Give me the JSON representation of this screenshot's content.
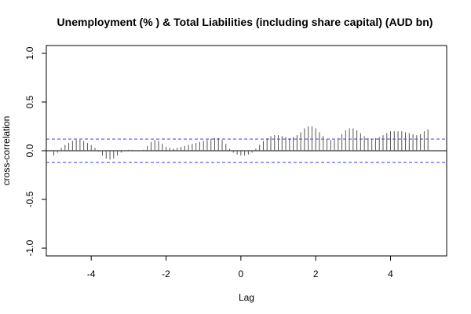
{
  "chart_data": {
    "type": "bar",
    "title": "Unemployment (% ) & Total Liabilities (including share capital) (AUD bn)",
    "xlabel": "Lag",
    "ylabel": "cross-correlation",
    "xlim": [
      -5.2,
      5.5
    ],
    "ylim": [
      -1.08,
      1.08
    ],
    "xticks": [
      -4,
      -2,
      0,
      2,
      4
    ],
    "yticks": [
      -1.0,
      -0.5,
      0.0,
      0.5,
      1.0
    ],
    "ytick_labels": [
      "-1.0",
      "-0.5",
      "0.0",
      "0.5",
      "1.0"
    ],
    "confidence_bound": 0.12,
    "colors": {
      "bars": "#555555",
      "bounds": "#3b3bdb",
      "frame": "#000000",
      "zero_line": "#000000"
    },
    "lags": [
      -5.0,
      -4.9,
      -4.8,
      -4.7,
      -4.6,
      -4.5,
      -4.4,
      -4.3,
      -4.2,
      -4.1,
      -4.0,
      -3.9,
      -3.8,
      -3.7,
      -3.6,
      -3.5,
      -3.4,
      -3.3,
      -3.2,
      -3.1,
      -3.0,
      -2.9,
      -2.8,
      -2.7,
      -2.6,
      -2.5,
      -2.4,
      -2.3,
      -2.2,
      -2.1,
      -2.0,
      -1.9,
      -1.8,
      -1.7,
      -1.6,
      -1.5,
      -1.4,
      -1.3,
      -1.2,
      -1.1,
      -1.0,
      -0.9,
      -0.8,
      -0.7,
      -0.6,
      -0.5,
      -0.4,
      -0.3,
      -0.2,
      -0.1,
      0.0,
      0.1,
      0.2,
      0.3,
      0.4,
      0.5,
      0.6,
      0.7,
      0.8,
      0.9,
      1.0,
      1.1,
      1.2,
      1.3,
      1.4,
      1.5,
      1.6,
      1.7,
      1.8,
      1.9,
      2.0,
      2.1,
      2.2,
      2.3,
      2.4,
      2.5,
      2.6,
      2.7,
      2.8,
      2.9,
      3.0,
      3.1,
      3.2,
      3.3,
      3.4,
      3.5,
      3.6,
      3.7,
      3.8,
      3.9,
      4.0,
      4.1,
      4.2,
      4.3,
      4.4,
      4.5,
      4.6,
      4.7,
      4.8,
      4.9,
      5.0
    ],
    "values": [
      -0.05,
      -0.02,
      0.03,
      0.06,
      0.08,
      0.1,
      0.11,
      0.11,
      0.1,
      0.08,
      0.06,
      0.03,
      -0.01,
      -0.05,
      -0.08,
      -0.09,
      -0.08,
      -0.05,
      -0.02,
      0.0,
      0.01,
      0.01,
      0.0,
      0.0,
      0.01,
      0.05,
      0.09,
      0.11,
      0.1,
      0.07,
      0.04,
      0.03,
      0.02,
      0.03,
      0.04,
      0.05,
      0.06,
      0.07,
      0.08,
      0.09,
      0.1,
      0.11,
      0.12,
      0.13,
      0.13,
      0.11,
      0.07,
      0.02,
      -0.02,
      -0.04,
      -0.05,
      -0.05,
      -0.04,
      -0.02,
      0.02,
      0.06,
      0.1,
      0.13,
      0.15,
      0.16,
      0.16,
      0.15,
      0.14,
      0.13,
      0.14,
      0.16,
      0.19,
      0.23,
      0.25,
      0.25,
      0.23,
      0.19,
      0.15,
      0.12,
      0.11,
      0.11,
      0.13,
      0.17,
      0.21,
      0.23,
      0.23,
      0.21,
      0.18,
      0.15,
      0.13,
      0.12,
      0.13,
      0.14,
      0.16,
      0.18,
      0.2,
      0.2,
      0.2,
      0.2,
      0.19,
      0.18,
      0.17,
      0.16,
      0.17,
      0.2,
      0.22
    ]
  }
}
